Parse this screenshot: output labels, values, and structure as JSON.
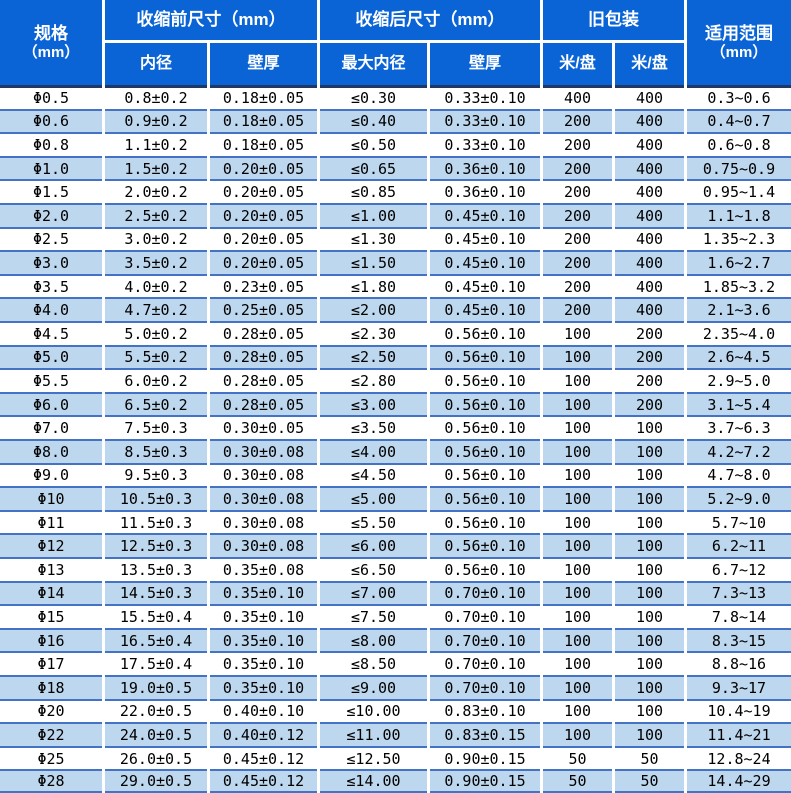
{
  "colors": {
    "header_background": "#0A64D6",
    "header_text": "#FFFFFF",
    "stripe_row_background": "#BDD7EE",
    "plain_row_background": "#FFFFFF",
    "grid_line": "#4472C4",
    "header_bottom_line": "#1F3864",
    "body_text": "#000000"
  },
  "header": {
    "spec": {
      "line1": "规格",
      "line2": "（mm）"
    },
    "before": {
      "title": "收缩前尺寸（mm）",
      "sub": [
        "内径",
        "壁厚"
      ]
    },
    "after": {
      "title": "收缩后尺寸（mm）",
      "sub": [
        "最大内径",
        "壁厚"
      ]
    },
    "old_pack": {
      "title": "旧包装",
      "sub": [
        "米/盘",
        "米/盘"
      ]
    },
    "range": {
      "line1": "适用范围",
      "line2": "（mm）"
    }
  },
  "table": {
    "column_keys": [
      "spec",
      "pre_id",
      "pre_wall",
      "max_id",
      "post_wall",
      "m1",
      "m2",
      "range"
    ],
    "rows": [
      {
        "spec": "Φ0.5",
        "pre_id": "0.8±0.2",
        "pre_wall": "0.18±0.05",
        "max_id": "≤0.30",
        "post_wall": "0.33±0.10",
        "m1": "400",
        "m2": "400",
        "range": "0.3~0.6"
      },
      {
        "spec": "Φ0.6",
        "pre_id": "0.9±0.2",
        "pre_wall": "0.18±0.05",
        "max_id": "≤0.40",
        "post_wall": "0.33±0.10",
        "m1": "200",
        "m2": "400",
        "range": "0.4~0.7"
      },
      {
        "spec": "Φ0.8",
        "pre_id": "1.1±0.2",
        "pre_wall": "0.18±0.05",
        "max_id": "≤0.50",
        "post_wall": "0.33±0.10",
        "m1": "200",
        "m2": "400",
        "range": "0.6~0.8"
      },
      {
        "spec": "Φ1.0",
        "pre_id": "1.5±0.2",
        "pre_wall": "0.20±0.05",
        "max_id": "≤0.65",
        "post_wall": "0.36±0.10",
        "m1": "200",
        "m2": "400",
        "range": "0.75~0.9"
      },
      {
        "spec": "Φ1.5",
        "pre_id": "2.0±0.2",
        "pre_wall": "0.20±0.05",
        "max_id": "≤0.85",
        "post_wall": "0.36±0.10",
        "m1": "200",
        "m2": "400",
        "range": "0.95~1.4"
      },
      {
        "spec": "Φ2.0",
        "pre_id": "2.5±0.2",
        "pre_wall": "0.20±0.05",
        "max_id": "≤1.00",
        "post_wall": "0.45±0.10",
        "m1": "200",
        "m2": "400",
        "range": "1.1~1.8"
      },
      {
        "spec": "Φ2.5",
        "pre_id": "3.0±0.2",
        "pre_wall": "0.20±0.05",
        "max_id": "≤1.30",
        "post_wall": "0.45±0.10",
        "m1": "200",
        "m2": "400",
        "range": "1.35~2.3"
      },
      {
        "spec": "Φ3.0",
        "pre_id": "3.5±0.2",
        "pre_wall": "0.20±0.05",
        "max_id": "≤1.50",
        "post_wall": "0.45±0.10",
        "m1": "200",
        "m2": "400",
        "range": "1.6~2.7"
      },
      {
        "spec": "Φ3.5",
        "pre_id": "4.0±0.2",
        "pre_wall": "0.23±0.05",
        "max_id": "≤1.80",
        "post_wall": "0.45±0.10",
        "m1": "200",
        "m2": "400",
        "range": "1.85~3.2"
      },
      {
        "spec": "Φ4.0",
        "pre_id": "4.7±0.2",
        "pre_wall": "0.25±0.05",
        "max_id": "≤2.00",
        "post_wall": "0.45±0.10",
        "m1": "200",
        "m2": "400",
        "range": "2.1~3.6"
      },
      {
        "spec": "Φ4.5",
        "pre_id": "5.0±0.2",
        "pre_wall": "0.28±0.05",
        "max_id": "≤2.30",
        "post_wall": "0.56±0.10",
        "m1": "100",
        "m2": "200",
        "range": "2.35~4.0"
      },
      {
        "spec": "Φ5.0",
        "pre_id": "5.5±0.2",
        "pre_wall": "0.28±0.05",
        "max_id": "≤2.50",
        "post_wall": "0.56±0.10",
        "m1": "100",
        "m2": "200",
        "range": "2.6~4.5"
      },
      {
        "spec": "Φ5.5",
        "pre_id": "6.0±0.2",
        "pre_wall": "0.28±0.05",
        "max_id": "≤2.80",
        "post_wall": "0.56±0.10",
        "m1": "100",
        "m2": "200",
        "range": "2.9~5.0"
      },
      {
        "spec": "Φ6.0",
        "pre_id": "6.5±0.2",
        "pre_wall": "0.28±0.05",
        "max_id": "≤3.00",
        "post_wall": "0.56±0.10",
        "m1": "100",
        "m2": "200",
        "range": "3.1~5.4"
      },
      {
        "spec": "Φ7.0",
        "pre_id": "7.5±0.3",
        "pre_wall": "0.30±0.05",
        "max_id": "≤3.50",
        "post_wall": "0.56±0.10",
        "m1": "100",
        "m2": "100",
        "range": "3.7~6.3"
      },
      {
        "spec": "Φ8.0",
        "pre_id": "8.5±0.3",
        "pre_wall": "0.30±0.08",
        "max_id": "≤4.00",
        "post_wall": "0.56±0.10",
        "m1": "100",
        "m2": "100",
        "range": "4.2~7.2"
      },
      {
        "spec": "Φ9.0",
        "pre_id": "9.5±0.3",
        "pre_wall": "0.30±0.08",
        "max_id": "≤4.50",
        "post_wall": "0.56±0.10",
        "m1": "100",
        "m2": "100",
        "range": "4.7~8.0"
      },
      {
        "spec": "Φ10",
        "pre_id": "10.5±0.3",
        "pre_wall": "0.30±0.08",
        "max_id": "≤5.00",
        "post_wall": "0.56±0.10",
        "m1": "100",
        "m2": "100",
        "range": "5.2~9.0"
      },
      {
        "spec": "Φ11",
        "pre_id": "11.5±0.3",
        "pre_wall": "0.30±0.08",
        "max_id": "≤5.50",
        "post_wall": "0.56±0.10",
        "m1": "100",
        "m2": "100",
        "range": "5.7~10"
      },
      {
        "spec": "Φ12",
        "pre_id": "12.5±0.3",
        "pre_wall": "0.30±0.08",
        "max_id": "≤6.00",
        "post_wall": "0.56±0.10",
        "m1": "100",
        "m2": "100",
        "range": "6.2~11"
      },
      {
        "spec": "Φ13",
        "pre_id": "13.5±0.3",
        "pre_wall": "0.35±0.08",
        "max_id": "≤6.50",
        "post_wall": "0.56±0.10",
        "m1": "100",
        "m2": "100",
        "range": "6.7~12"
      },
      {
        "spec": "Φ14",
        "pre_id": "14.5±0.3",
        "pre_wall": "0.35±0.10",
        "max_id": "≤7.00",
        "post_wall": "0.70±0.10",
        "m1": "100",
        "m2": "100",
        "range": "7.3~13"
      },
      {
        "spec": "Φ15",
        "pre_id": "15.5±0.4",
        "pre_wall": "0.35±0.10",
        "max_id": "≤7.50",
        "post_wall": "0.70±0.10",
        "m1": "100",
        "m2": "100",
        "range": "7.8~14"
      },
      {
        "spec": "Φ16",
        "pre_id": "16.5±0.4",
        "pre_wall": "0.35±0.10",
        "max_id": "≤8.00",
        "post_wall": "0.70±0.10",
        "m1": "100",
        "m2": "100",
        "range": "8.3~15"
      },
      {
        "spec": "Φ17",
        "pre_id": "17.5±0.4",
        "pre_wall": "0.35±0.10",
        "max_id": "≤8.50",
        "post_wall": "0.70±0.10",
        "m1": "100",
        "m2": "100",
        "range": "8.8~16"
      },
      {
        "spec": "Φ18",
        "pre_id": "19.0±0.5",
        "pre_wall": "0.35±0.10",
        "max_id": "≤9.00",
        "post_wall": "0.70±0.10",
        "m1": "100",
        "m2": "100",
        "range": "9.3~17"
      },
      {
        "spec": "Φ20",
        "pre_id": "22.0±0.5",
        "pre_wall": "0.40±0.10",
        "max_id": "≤10.00",
        "post_wall": "0.83±0.10",
        "m1": "100",
        "m2": "100",
        "range": "10.4~19"
      },
      {
        "spec": "Φ22",
        "pre_id": "24.0±0.5",
        "pre_wall": "0.40±0.12",
        "max_id": "≤11.00",
        "post_wall": "0.83±0.15",
        "m1": "100",
        "m2": "100",
        "range": "11.4~21"
      },
      {
        "spec": "Φ25",
        "pre_id": "26.0±0.5",
        "pre_wall": "0.45±0.12",
        "max_id": "≤12.50",
        "post_wall": "0.90±0.15",
        "m1": "50",
        "m2": "50",
        "range": "12.8~24"
      },
      {
        "spec": "Φ28",
        "pre_id": "29.0±0.5",
        "pre_wall": "0.45±0.12",
        "max_id": "≤14.00",
        "post_wall": "0.90±0.15",
        "m1": "50",
        "m2": "50",
        "range": "14.4~29"
      }
    ]
  }
}
